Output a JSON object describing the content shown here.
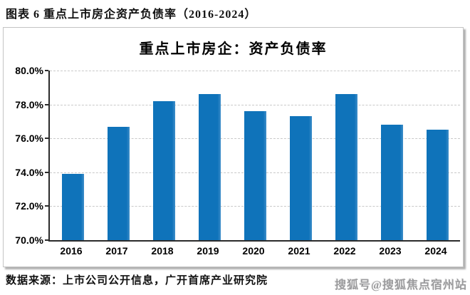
{
  "header": {
    "title": "图表 6 重点上市房企资产负债率（2016-2024）"
  },
  "chart_data": {
    "type": "bar",
    "title": "重点上市房企：资产负债率",
    "categories": [
      "2016",
      "2017",
      "2018",
      "2019",
      "2020",
      "2021",
      "2022",
      "2023",
      "2024"
    ],
    "values": [
      73.9,
      76.7,
      78.2,
      78.6,
      77.6,
      77.3,
      78.6,
      76.8,
      76.5
    ],
    "ylim": [
      70,
      80
    ],
    "yticks": [
      {
        "value": 80,
        "label": "80.0%"
      },
      {
        "value": 78,
        "label": "78.0%"
      },
      {
        "value": 76,
        "label": "76.0%"
      },
      {
        "value": 74,
        "label": "74.0%"
      },
      {
        "value": 72,
        "label": "72.0%"
      },
      {
        "value": 70,
        "label": "70.0%"
      }
    ],
    "bar_color": "#0f73ba",
    "grid": true,
    "legend_position": "none",
    "xlabel": "",
    "ylabel": ""
  },
  "footer": {
    "source": "数据来源：上市公司公开信息，广开首席产业研究院"
  },
  "watermark": {
    "text": "搜狐号@搜狐焦点宿州站"
  }
}
